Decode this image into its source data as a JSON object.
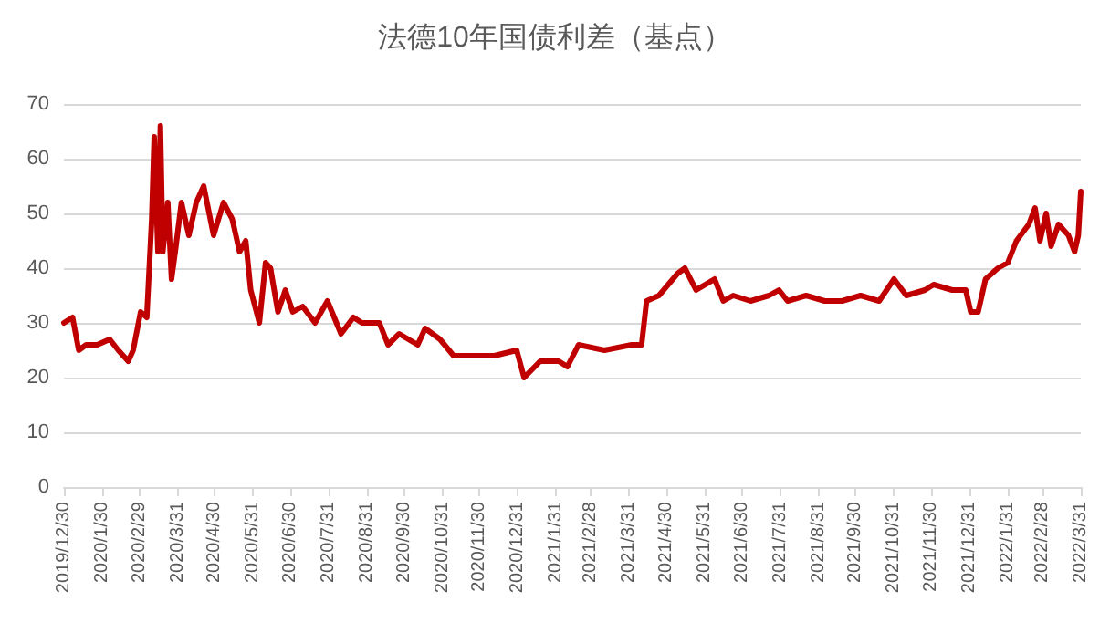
{
  "chart_data": {
    "type": "line",
    "title": "法德10年国债利差（基点）",
    "x": [
      "2019-12-30",
      "2020-01-06",
      "2020-01-11",
      "2020-01-17",
      "2020-01-26",
      "2020-02-05",
      "2020-02-12",
      "2020-02-20",
      "2020-02-24",
      "2020-03-01",
      "2020-03-06",
      "2020-03-10",
      "2020-03-12",
      "2020-03-15",
      "2020-03-17",
      "2020-03-19",
      "2020-03-23",
      "2020-03-26",
      "2020-03-29",
      "2020-04-03",
      "2020-04-09",
      "2020-04-15",
      "2020-04-21",
      "2020-04-29",
      "2020-05-07",
      "2020-05-14",
      "2020-05-20",
      "2020-05-25",
      "2020-05-29",
      "2020-06-05",
      "2020-06-10",
      "2020-06-14",
      "2020-06-20",
      "2020-06-26",
      "2020-07-02",
      "2020-07-10",
      "2020-07-20",
      "2020-07-30",
      "2020-08-10",
      "2020-08-20",
      "2020-08-27",
      "2020-09-10",
      "2020-09-17",
      "2020-09-26",
      "2020-10-11",
      "2020-10-17",
      "2020-10-29",
      "2020-11-09",
      "2020-11-27",
      "2020-12-12",
      "2020-12-30",
      "2021-01-05",
      "2021-01-18",
      "2021-02-02",
      "2021-02-09",
      "2021-02-18",
      "2021-03-11",
      "2021-04-02",
      "2021-04-10",
      "2021-04-14",
      "2021-04-24",
      "2021-05-09",
      "2021-05-15",
      "2021-05-24",
      "2021-06-08",
      "2021-06-15",
      "2021-06-23",
      "2021-07-07",
      "2021-07-22",
      "2021-07-30",
      "2021-08-06",
      "2021-08-21",
      "2021-09-05",
      "2021-09-19",
      "2021-10-04",
      "2021-10-19",
      "2021-10-31",
      "2021-11-10",
      "2021-11-25",
      "2021-12-02",
      "2021-12-17",
      "2021-12-28",
      "2022-01-01",
      "2022-01-07",
      "2022-01-13",
      "2022-01-23",
      "2022-01-31",
      "2022-02-07",
      "2022-02-17",
      "2022-02-22",
      "2022-02-26",
      "2022-03-03",
      "2022-03-07",
      "2022-03-13",
      "2022-03-21",
      "2022-03-26",
      "2022-03-29",
      "2022-03-31"
    ],
    "series": [
      {
        "color": "#c00000",
        "values": [
          30,
          31,
          25,
          26,
          26,
          27,
          25,
          23,
          25,
          32,
          31,
          49,
          64,
          43,
          66,
          43,
          52,
          38,
          43,
          52,
          46,
          52,
          55,
          46,
          52,
          49,
          43,
          45,
          36,
          30,
          41,
          40,
          32,
          36,
          32,
          33,
          30,
          34,
          28,
          31,
          30,
          30,
          26,
          28,
          26,
          29,
          27,
          24,
          24,
          24,
          25,
          20,
          23,
          23,
          22,
          26,
          25,
          26,
          26,
          34,
          35,
          39,
          40,
          36,
          38,
          34,
          35,
          34,
          35,
          36,
          34,
          35,
          34,
          34,
          35,
          34,
          38,
          35,
          36,
          37,
          36,
          36,
          32,
          32,
          38,
          40,
          41,
          45,
          48,
          51,
          45,
          50,
          44,
          48,
          46,
          43,
          46,
          54
        ]
      }
    ],
    "xlim": [
      "2019-12-30",
      "2022-03-31"
    ],
    "xticks": [
      {
        "value": "2019-12-30",
        "label": "2019/12/30"
      },
      {
        "value": "2020-01-30",
        "label": "2020/1/30"
      },
      {
        "value": "2020-02-29",
        "label": "2020/2/29"
      },
      {
        "value": "2020-03-31",
        "label": "2020/3/31"
      },
      {
        "value": "2020-04-30",
        "label": "2020/4/30"
      },
      {
        "value": "2020-05-31",
        "label": "2020/5/31"
      },
      {
        "value": "2020-06-30",
        "label": "2020/6/30"
      },
      {
        "value": "2020-07-31",
        "label": "2020/7/31"
      },
      {
        "value": "2020-08-31",
        "label": "2020/8/31"
      },
      {
        "value": "2020-09-30",
        "label": "2020/9/30"
      },
      {
        "value": "2020-10-31",
        "label": "2020/10/31"
      },
      {
        "value": "2020-11-30",
        "label": "2020/11/30"
      },
      {
        "value": "2020-12-31",
        "label": "2020/12/31"
      },
      {
        "value": "2021-01-31",
        "label": "2021/1/31"
      },
      {
        "value": "2021-02-28",
        "label": "2021/2/28"
      },
      {
        "value": "2021-03-31",
        "label": "2021/3/31"
      },
      {
        "value": "2021-04-30",
        "label": "2021/4/30"
      },
      {
        "value": "2021-05-31",
        "label": "2021/5/31"
      },
      {
        "value": "2021-06-30",
        "label": "2021/6/30"
      },
      {
        "value": "2021-07-31",
        "label": "2021/7/31"
      },
      {
        "value": "2021-08-31",
        "label": "2021/8/31"
      },
      {
        "value": "2021-09-30",
        "label": "2021/9/30"
      },
      {
        "value": "2021-10-31",
        "label": "2021/10/31"
      },
      {
        "value": "2021-11-30",
        "label": "2021/11/30"
      },
      {
        "value": "2021-12-31",
        "label": "2021/12/31"
      },
      {
        "value": "2022-01-31",
        "label": "2022/1/31"
      },
      {
        "value": "2022-02-28",
        "label": "2022/2/28"
      },
      {
        "value": "2022-03-31",
        "label": "2022/3/31"
      }
    ],
    "ylim": [
      0,
      70
    ],
    "yticks": [
      0,
      10,
      20,
      30,
      40,
      50,
      60,
      70
    ],
    "grid": "y",
    "marker": "none",
    "line_style": "solid"
  }
}
